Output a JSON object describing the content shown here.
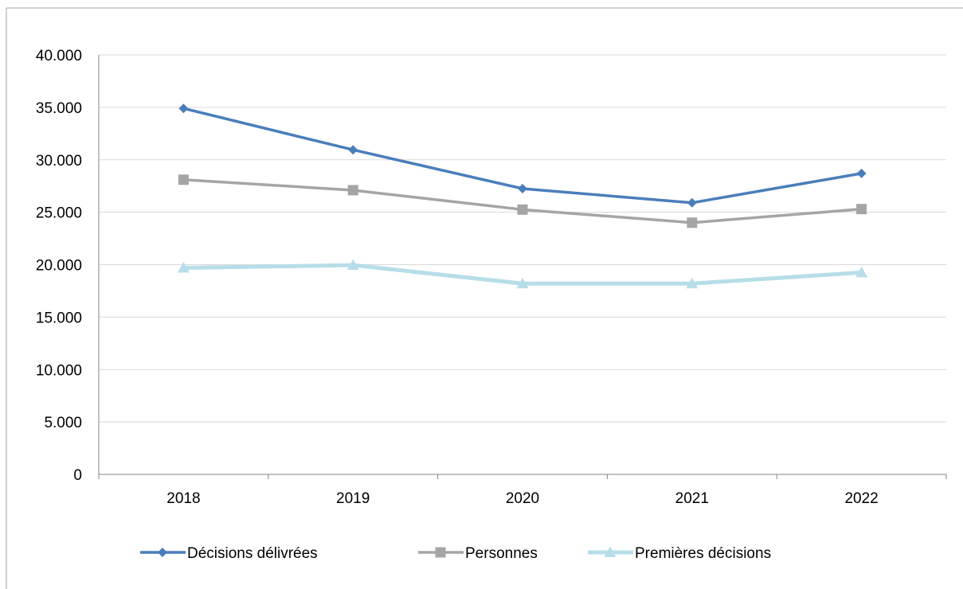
{
  "chart_data": {
    "type": "line",
    "categories": [
      "2018",
      "2019",
      "2020",
      "2021",
      "2022"
    ],
    "series": [
      {
        "name": "Décisions délivrées",
        "values": [
          34900,
          30950,
          27250,
          25900,
          28700
        ],
        "color": "#4a7ebb",
        "marker": "diamond"
      },
      {
        "name": "Personnes",
        "values": [
          28100,
          27100,
          25250,
          24000,
          25300
        ],
        "color": "#a5a5a5",
        "marker": "square"
      },
      {
        "name": "Premières décisions",
        "values": [
          19700,
          19950,
          18200,
          18200,
          19250
        ],
        "color": "#b7dee8",
        "marker": "triangle"
      }
    ],
    "ylim": [
      0,
      40000
    ],
    "yticks": [
      "0",
      "5.000",
      "10.000",
      "15.000",
      "20.000",
      "25.000",
      "30.000",
      "35.000",
      "40.000"
    ],
    "grid": true,
    "legend_position": "bottom"
  }
}
